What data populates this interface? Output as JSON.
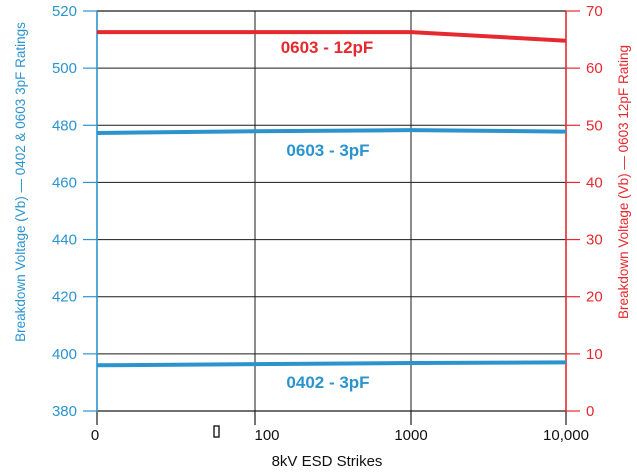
{
  "chart_data": {
    "type": "line",
    "xlabel": "8kV ESD Strikes",
    "x_categories": [
      "0",
      "100",
      "1000",
      "10,000"
    ],
    "x_marker": "▯",
    "y_left": {
      "label": "Breakdown Voltage (Vb) — 0402 & 0603 3pF Ratings",
      "ylim": [
        380,
        520
      ],
      "ticks": [
        380,
        400,
        420,
        440,
        460,
        480,
        500,
        520
      ],
      "color": "#2b94cf"
    },
    "y_right": {
      "label": "Breakdown Voltage (Vb) — 0603 12pF Rating",
      "ylim": [
        0,
        70
      ],
      "ticks": [
        0,
        10,
        20,
        30,
        40,
        50,
        60,
        70
      ],
      "color": "#e52a2f"
    },
    "grid": true,
    "series": [
      {
        "name": "0603 - 12pF",
        "axis": "right",
        "color": "#e52a2f",
        "x": [
          0,
          100,
          1000,
          10000
        ],
        "values": [
          66.3,
          66.3,
          66.3,
          64.8
        ]
      },
      {
        "name": "0603 - 3pF",
        "axis": "left",
        "color": "#2b94cf",
        "x": [
          0,
          100,
          1000,
          10000
        ],
        "values": [
          477.3,
          477.9,
          478.3,
          477.8
        ]
      },
      {
        "name": "0402 - 3pF",
        "axis": "left",
        "color": "#2b94cf",
        "x": [
          0,
          100,
          1000,
          10000
        ],
        "values": [
          396.0,
          396.4,
          396.8,
          397.0
        ]
      }
    ]
  }
}
